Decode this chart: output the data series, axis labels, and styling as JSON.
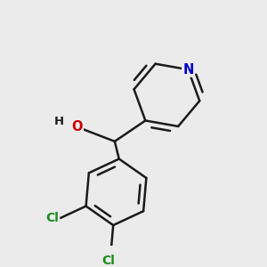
{
  "background_color": "#ebebeb",
  "bond_color": "#1a1a1a",
  "bond_width": 1.8,
  "atom_labels": {
    "N": {
      "color": "#0000cc",
      "fontsize": 10.5
    },
    "O": {
      "color": "#cc0000",
      "fontsize": 10.5
    },
    "Cl1": {
      "color": "#1a8c1a",
      "fontsize": 10.0
    },
    "Cl2": {
      "color": "#1a8c1a",
      "fontsize": 10.0
    },
    "H": {
      "color": "#1a1a1a",
      "fontsize": 9.5
    }
  },
  "figsize": [
    3.0,
    3.0
  ],
  "dpi": 100
}
